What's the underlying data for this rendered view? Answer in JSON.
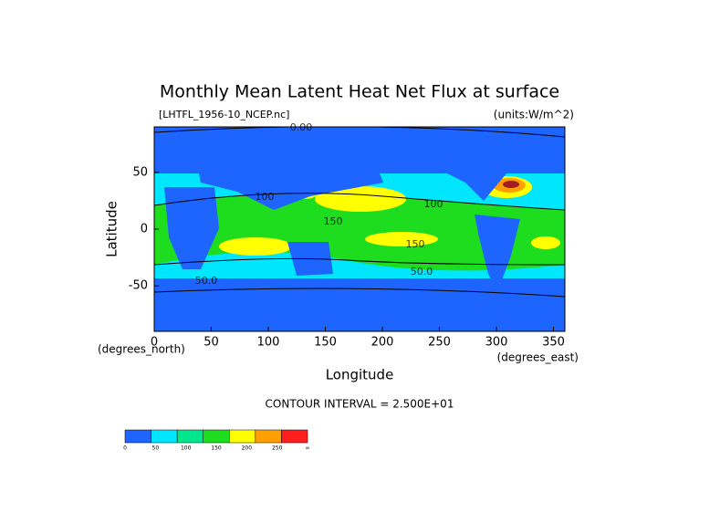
{
  "chart_data": {
    "type": "contour-map",
    "title": "Monthly Mean Latent Heat Net Flux at surface",
    "subtitle_left": "[LHTFL_1956-10_NCEP.nc]",
    "subtitle_right": "(units:W/m^2)",
    "xlabel": "Longitude",
    "ylabel": "Latitude",
    "xunit": "(degrees_east)",
    "yunit": "(degrees_north)",
    "xlim": [
      0,
      360
    ],
    "xticks": [
      0,
      50,
      100,
      150,
      200,
      250,
      300,
      350
    ],
    "ylim": [
      -90,
      90
    ],
    "yticks": [
      -50,
      0,
      50
    ],
    "contour_interval": "CONTOUR INTERVAL = 2.500E+01",
    "contour_labels": [
      "0.00",
      "100",
      "150",
      "50.0",
      "100",
      "150",
      "50.0"
    ],
    "colorbar": {
      "colors": [
        "#1e64ff",
        "#00e6ff",
        "#00e68c",
        "#1edc1e",
        "#ffff00",
        "#ffa000",
        "#ff1e1e"
      ],
      "labels": [
        "0",
        "50",
        "100",
        "150",
        "200",
        "250",
        "∞"
      ]
    }
  }
}
